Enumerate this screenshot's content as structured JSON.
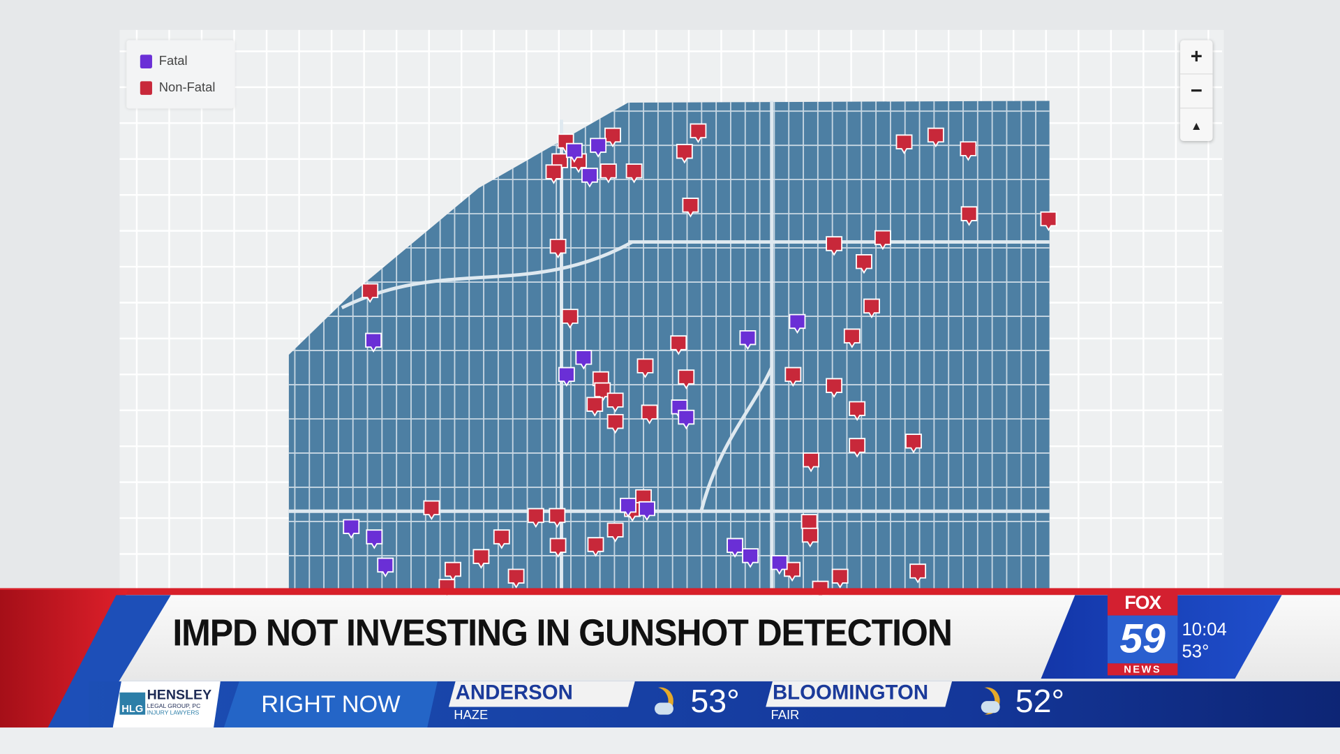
{
  "map": {
    "legend": [
      {
        "label": "Fatal",
        "color": "#6a2fd6",
        "icon": "fatal-marker-icon"
      },
      {
        "label": "Non-Fatal",
        "color": "#c8283a",
        "icon": "non-fatal-marker-icon"
      }
    ],
    "zoom_in": "+",
    "zoom_out": "−",
    "compass": "▲",
    "area_color": "#4d7fa3"
  },
  "lower_third": {
    "headline": "IMPD NOT INVESTING IN GUNSHOT DETECTION",
    "station": {
      "top": "FOX",
      "number": "59",
      "bottom": "NEWS"
    },
    "time": "10:04",
    "temp": "53°"
  },
  "ticker": {
    "sponsor": {
      "mark": "HLG",
      "name": "HENSLEY",
      "line1": "LEGAL GROUP, PC",
      "line2": "INJURY LAWYERS"
    },
    "label": "RIGHT NOW",
    "weather": [
      {
        "city": "ANDERSON",
        "condition": "HAZE",
        "temp": "53°",
        "icon": "haze-moon-icon"
      },
      {
        "city": "BLOOMINGTON",
        "condition": "FAIR",
        "temp": "52°",
        "icon": "partly-cloudy-moon-icon"
      }
    ]
  }
}
